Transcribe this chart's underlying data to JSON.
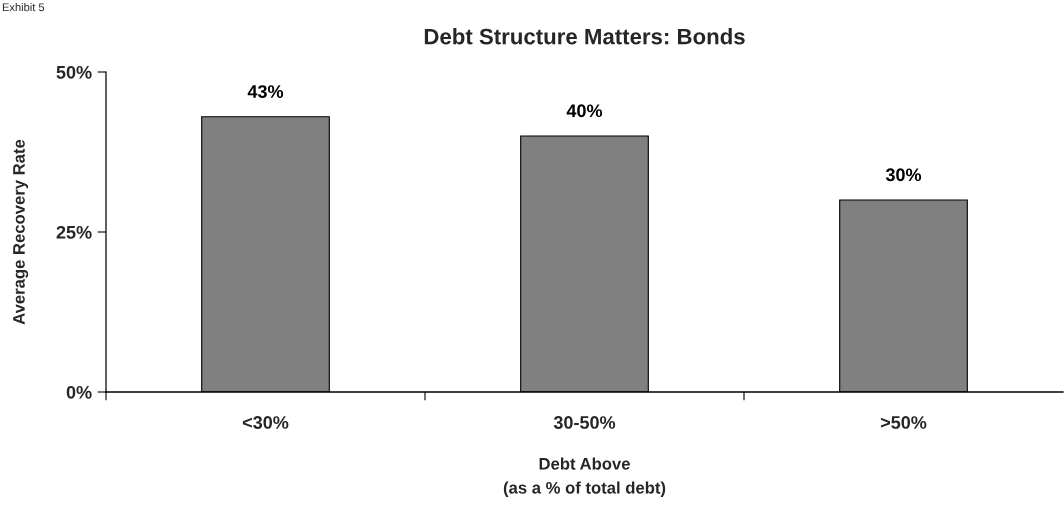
{
  "chart_data": {
    "type": "bar",
    "title": "Debt Structure Matters: Bonds",
    "xlabel": "Debt Above\n(as a % of total debt)",
    "ylabel": "Average Recovery Rate",
    "annotations": [
      "Exhibit 5"
    ],
    "categories": [
      "<30%",
      "30-50%",
      ">50%"
    ],
    "values": [
      43,
      40,
      30
    ],
    "color": "#808080",
    "value_labels": [
      "43%",
      "40%",
      "30%"
    ],
    "ylim": [
      0,
      50
    ],
    "yticks": [
      {
        "value": 0,
        "label": "0%"
      },
      {
        "value": 25,
        "label": "25%"
      },
      {
        "value": 50,
        "label": "50%"
      }
    ]
  }
}
